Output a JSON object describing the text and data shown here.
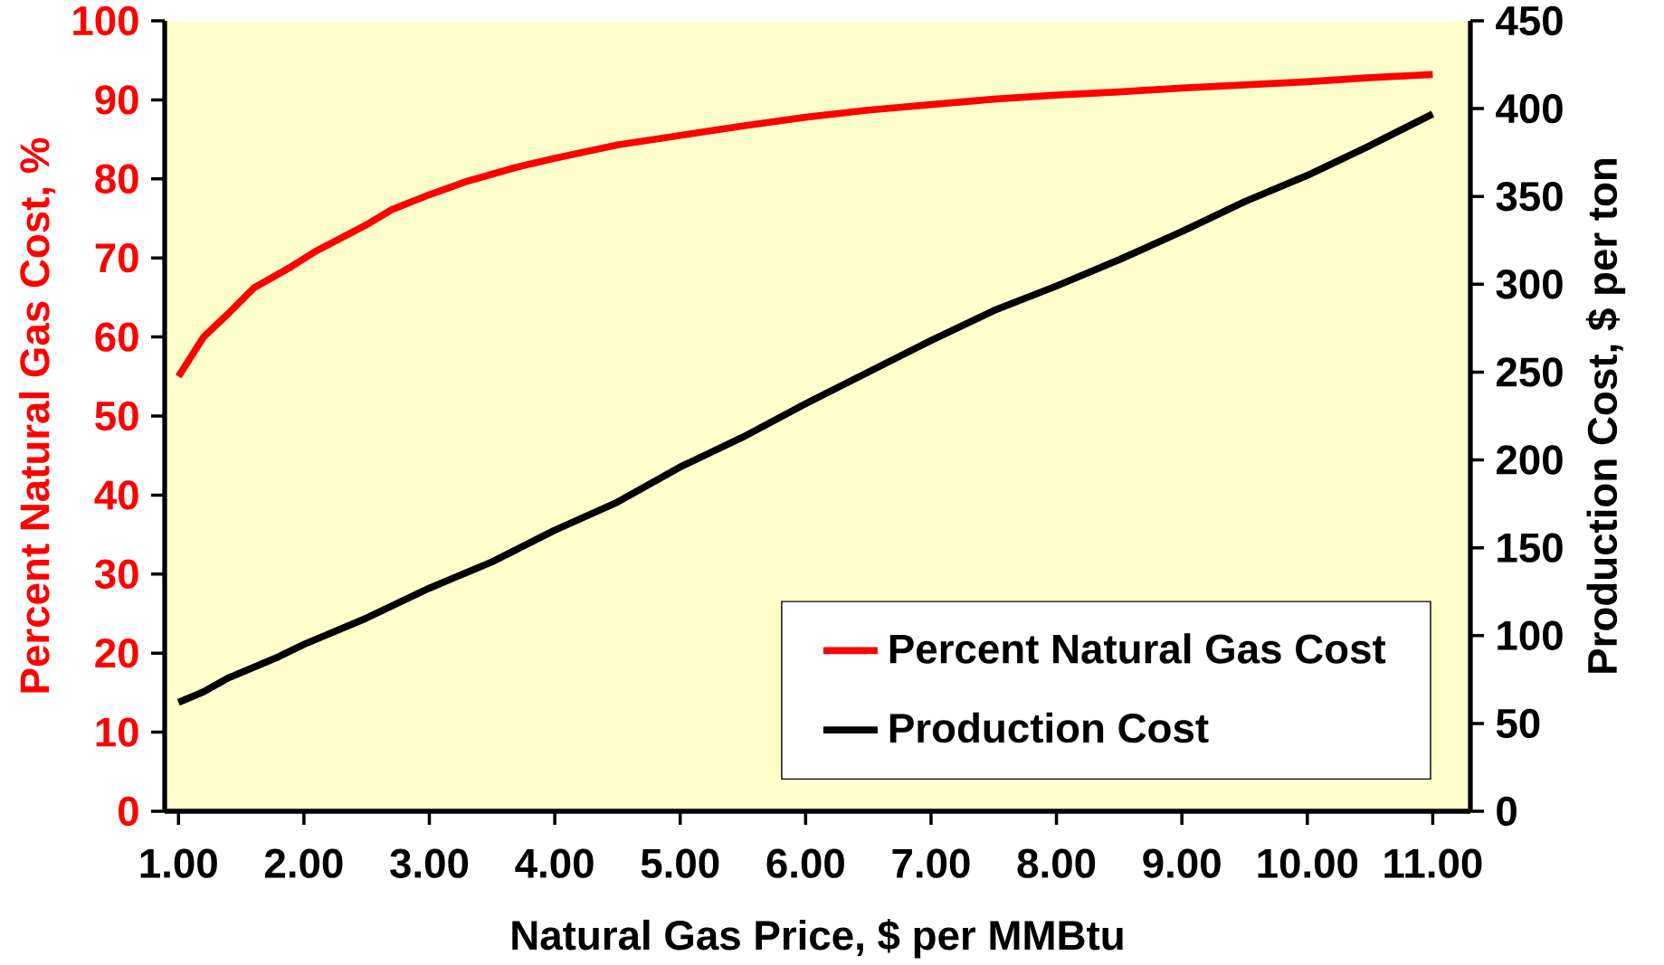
{
  "chart_data": {
    "type": "line",
    "xlabel": "Natural Gas Price, $ per MMBtu",
    "ylabel": "Percent Natural Gas Cost, %",
    "y2label": "Production Cost, $ per ton",
    "xlim": [
      0.89,
      11.3
    ],
    "xticks": [
      {
        "value": 1,
        "label": "1.00"
      },
      {
        "value": 2,
        "label": "2.00"
      },
      {
        "value": 3,
        "label": "3.00"
      },
      {
        "value": 4,
        "label": "4.00"
      },
      {
        "value": 5,
        "label": "5.00"
      },
      {
        "value": 6,
        "label": "6.00"
      },
      {
        "value": 7,
        "label": "7.00"
      },
      {
        "value": 8,
        "label": "8.00"
      },
      {
        "value": 9,
        "label": "9.00"
      },
      {
        "value": 10,
        "label": "10.00"
      },
      {
        "value": 11,
        "label": "11.00"
      }
    ],
    "ylim": [
      0,
      100
    ],
    "yticks": [
      0,
      10,
      20,
      30,
      40,
      50,
      60,
      70,
      80,
      90,
      100
    ],
    "y2lim": [
      0,
      450
    ],
    "y2ticks": [
      0,
      50,
      100,
      150,
      200,
      250,
      300,
      350,
      400,
      450
    ],
    "legend": "bottom right",
    "grid": false,
    "marker": "none",
    "line_style": "solid",
    "series": [
      {
        "name": "Percent Natural Gas Cost",
        "color": "#ff0000",
        "x": [
          1.0,
          1.2,
          1.4,
          1.6,
          1.9,
          2.1,
          2.5,
          2.7,
          3.0,
          3.3,
          3.7,
          4.0,
          4.5,
          5.0,
          5.5,
          6.0,
          6.5,
          7.0,
          7.5,
          8.0,
          8.5,
          9.0,
          9.5,
          10.0,
          10.5,
          11.0
        ],
        "values": [
          55.0,
          60.0,
          63.0,
          66.2,
          68.9,
          70.9,
          74.2,
          76.1,
          78.0,
          79.7,
          81.5,
          82.6,
          84.3,
          85.5,
          86.7,
          87.8,
          88.7,
          89.4,
          90.1,
          90.6,
          91.0,
          91.5,
          91.9,
          92.3,
          92.8,
          93.2
        ]
      },
      {
        "name": "Production Cost",
        "color": "#000000",
        "axis": "y2",
        "x": [
          1.0,
          1.2,
          1.4,
          1.8,
          2.0,
          2.5,
          3.0,
          3.5,
          4.0,
          4.5,
          5.0,
          5.5,
          6.0,
          6.5,
          7.0,
          7.5,
          8.0,
          8.5,
          9.0,
          9.5,
          10.0,
          10.5,
          11.0
        ],
        "values": [
          62,
          68,
          76,
          88,
          95,
          110,
          127,
          142,
          160,
          176,
          196,
          213,
          232,
          250,
          268,
          285,
          299,
          314,
          330,
          347,
          362,
          379,
          397
        ]
      }
    ]
  }
}
